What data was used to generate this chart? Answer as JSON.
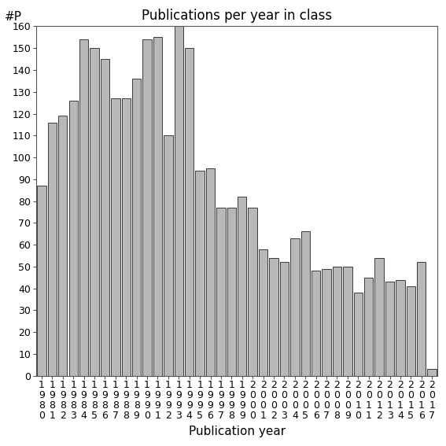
{
  "title": "Publications per year in class",
  "xlabel": "Publication year",
  "ylabel": "#P",
  "bar_color": "#b8b8b8",
  "edge_color": "#222222",
  "background_color": "#ffffff",
  "years": [
    1980,
    1981,
    1982,
    1983,
    1984,
    1985,
    1986,
    1987,
    1988,
    1989,
    1990,
    1991,
    1992,
    1993,
    1994,
    1995,
    1996,
    1997,
    1998,
    1999,
    2000,
    2001,
    2002,
    2003,
    2004,
    2005,
    2006,
    2007,
    2008,
    2009,
    2010,
    2011,
    2012,
    2013,
    2014,
    2015,
    2016,
    2017
  ],
  "values": [
    87,
    116,
    119,
    126,
    154,
    150,
    145,
    127,
    127,
    136,
    154,
    155,
    110,
    160,
    150,
    94,
    95,
    77,
    77,
    82,
    77,
    58,
    54,
    52,
    63,
    66,
    48,
    49,
    50,
    50,
    38,
    45,
    54,
    43,
    44,
    41,
    52,
    3
  ],
  "ylim": [
    0,
    160
  ],
  "yticks": [
    0,
    10,
    20,
    30,
    40,
    50,
    60,
    70,
    80,
    90,
    100,
    110,
    120,
    130,
    140,
    150,
    160
  ],
  "title_fontsize": 12,
  "axis_label_fontsize": 11,
  "tick_fontsize": 9
}
